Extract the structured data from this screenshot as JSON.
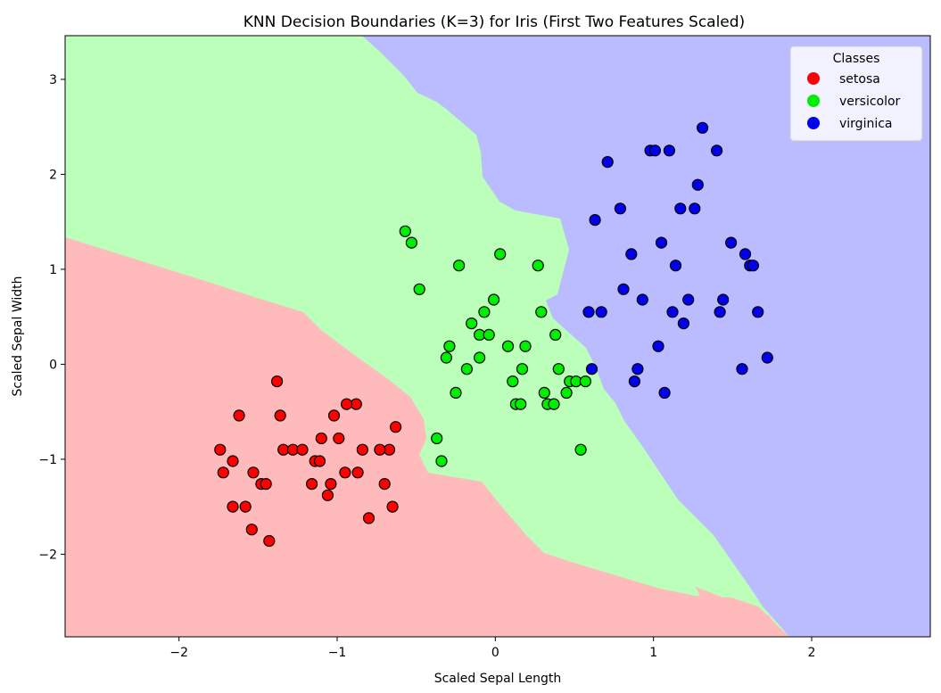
{
  "chart_data": {
    "type": "scatter",
    "title": "KNN Decision Boundaries (K=3) for Iris (First Two Features Scaled)",
    "xlabel": "Scaled Sepal Length",
    "ylabel": "Scaled Sepal Width",
    "xlim": [
      -2.72,
      2.75
    ],
    "ylim": [
      -2.87,
      3.46
    ],
    "xticks": [
      -2,
      -1,
      0,
      1,
      2
    ],
    "yticks": [
      -2,
      -1,
      0,
      1,
      2,
      3
    ],
    "xtick_labels": [
      "−2",
      "−1",
      "0",
      "1",
      "2"
    ],
    "ytick_labels": [
      "−2",
      "−1",
      "0",
      "1",
      "2",
      "3"
    ],
    "legend": {
      "title": "Classes",
      "position": "top-right"
    },
    "regions": [
      {
        "class": "setosa",
        "color": "#ffbbbb"
      },
      {
        "class": "versicolor",
        "color": "#bbffbb"
      },
      {
        "class": "virginica",
        "color": "#bbbbff"
      }
    ],
    "series": [
      {
        "name": "setosa",
        "color": "#ff0000",
        "points": [
          [
            -1.38,
            -0.18
          ],
          [
            -1.62,
            -0.54
          ],
          [
            -1.36,
            -0.54
          ],
          [
            -1.02,
            -0.54
          ],
          [
            -0.88,
            -0.42
          ],
          [
            -0.94,
            -0.42
          ],
          [
            -1.74,
            -0.9
          ],
          [
            -1.34,
            -0.9
          ],
          [
            -1.28,
            -0.9
          ],
          [
            -1.22,
            -0.9
          ],
          [
            -0.84,
            -0.9
          ],
          [
            -0.67,
            -0.9
          ],
          [
            -0.73,
            -0.9
          ],
          [
            -0.63,
            -0.66
          ],
          [
            -1.66,
            -1.02
          ],
          [
            -1.14,
            -1.02
          ],
          [
            -1.11,
            -1.02
          ],
          [
            -1.1,
            -0.78
          ],
          [
            -0.99,
            -0.78
          ],
          [
            -1.72,
            -1.14
          ],
          [
            -1.53,
            -1.14
          ],
          [
            -0.95,
            -1.14
          ],
          [
            -0.87,
            -1.14
          ],
          [
            -1.48,
            -1.26
          ],
          [
            -1.45,
            -1.26
          ],
          [
            -1.16,
            -1.26
          ],
          [
            -1.04,
            -1.26
          ],
          [
            -0.7,
            -1.26
          ],
          [
            -1.06,
            -1.38
          ],
          [
            -1.66,
            -1.5
          ],
          [
            -1.58,
            -1.5
          ],
          [
            -0.65,
            -1.5
          ],
          [
            -0.8,
            -1.62
          ],
          [
            -1.54,
            -1.74
          ],
          [
            -1.43,
            -1.86
          ]
        ]
      },
      {
        "name": "versicolor",
        "color": "#00ee00",
        "points": [
          [
            -0.57,
            1.4
          ],
          [
            -0.53,
            1.28
          ],
          [
            -0.48,
            0.79
          ],
          [
            -0.23,
            1.04
          ],
          [
            0.03,
            1.16
          ],
          [
            0.27,
            1.04
          ],
          [
            -0.01,
            0.68
          ],
          [
            -0.07,
            0.55
          ],
          [
            -0.15,
            0.43
          ],
          [
            0.29,
            0.55
          ],
          [
            -0.1,
            0.31
          ],
          [
            -0.04,
            0.31
          ],
          [
            0.38,
            0.31
          ],
          [
            -0.29,
            0.19
          ],
          [
            0.08,
            0.19
          ],
          [
            0.19,
            0.19
          ],
          [
            -0.31,
            0.07
          ],
          [
            -0.1,
            0.07
          ],
          [
            -0.18,
            -0.05
          ],
          [
            0.17,
            -0.05
          ],
          [
            0.4,
            -0.05
          ],
          [
            0.11,
            -0.18
          ],
          [
            0.47,
            -0.18
          ],
          [
            0.51,
            -0.18
          ],
          [
            0.57,
            -0.18
          ],
          [
            -0.25,
            -0.3
          ],
          [
            0.31,
            -0.3
          ],
          [
            0.45,
            -0.3
          ],
          [
            0.13,
            -0.42
          ],
          [
            0.16,
            -0.42
          ],
          [
            0.33,
            -0.42
          ],
          [
            0.37,
            -0.42
          ],
          [
            -0.37,
            -0.78
          ],
          [
            0.54,
            -0.9
          ],
          [
            -0.34,
            -1.02
          ]
        ]
      },
      {
        "name": "virginica",
        "color": "#0000ee",
        "points": [
          [
            1.31,
            2.49
          ],
          [
            0.98,
            2.25
          ],
          [
            1.01,
            2.25
          ],
          [
            1.1,
            2.25
          ],
          [
            1.4,
            2.25
          ],
          [
            0.71,
            2.13
          ],
          [
            1.28,
            1.89
          ],
          [
            0.63,
            1.52
          ],
          [
            0.79,
            1.64
          ],
          [
            1.17,
            1.64
          ],
          [
            1.26,
            1.64
          ],
          [
            0.86,
            1.16
          ],
          [
            1.05,
            1.28
          ],
          [
            1.14,
            1.04
          ],
          [
            1.49,
            1.28
          ],
          [
            1.58,
            1.16
          ],
          [
            1.61,
            1.04
          ],
          [
            1.63,
            1.04
          ],
          [
            0.81,
            0.79
          ],
          [
            0.93,
            0.68
          ],
          [
            1.22,
            0.68
          ],
          [
            1.44,
            0.68
          ],
          [
            0.59,
            0.55
          ],
          [
            0.67,
            0.55
          ],
          [
            1.12,
            0.55
          ],
          [
            1.42,
            0.55
          ],
          [
            1.66,
            0.55
          ],
          [
            1.19,
            0.43
          ],
          [
            1.03,
            0.19
          ],
          [
            0.61,
            -0.05
          ],
          [
            0.9,
            -0.05
          ],
          [
            1.56,
            -0.05
          ],
          [
            1.72,
            0.07
          ],
          [
            0.88,
            -0.18
          ],
          [
            1.07,
            -0.3
          ]
        ]
      }
    ]
  }
}
